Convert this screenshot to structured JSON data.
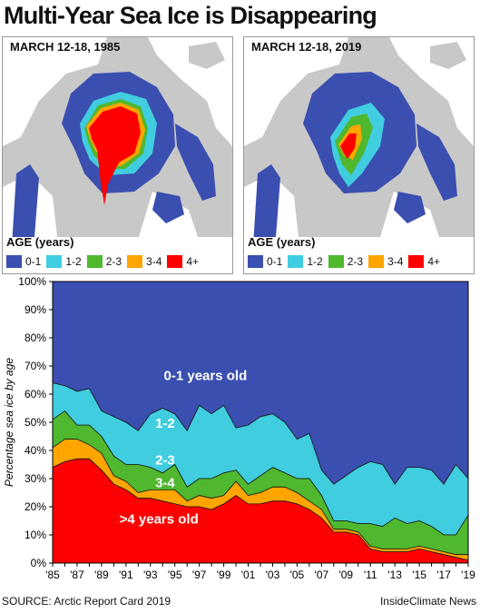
{
  "title": "Multi-Year Sea Ice is Disappearing",
  "maps": [
    {
      "date": "MARCH 12-18, 1985"
    },
    {
      "date": "MARCH 12-18, 2019"
    }
  ],
  "legend": {
    "title": "AGE (years)",
    "items": [
      {
        "label": "0-1",
        "color": "#3a4fb0"
      },
      {
        "label": "1-2",
        "color": "#40cde0"
      },
      {
        "label": "2-3",
        "color": "#4fb82e"
      },
      {
        "label": "3-4",
        "color": "#ffa500"
      },
      {
        "label": "4+",
        "color": "#ff0000"
      }
    ]
  },
  "colors": {
    "land": "#c8c8c8",
    "ocean": "#ffffff"
  },
  "chart_data": {
    "type": "area",
    "stacked": true,
    "ylabel": "Percentage sea ice by age",
    "ylim": [
      0,
      100
    ],
    "yticks": [
      "0%",
      "10%",
      "20%",
      "30%",
      "40%",
      "50%",
      "60%",
      "70%",
      "80%",
      "90%",
      "100%"
    ],
    "xtick_labels": [
      "'85",
      "'87",
      "'89",
      "'91",
      "'93",
      "'95",
      "'97",
      "'99",
      "'01",
      "'03",
      "'05",
      "'07",
      "'09",
      "'11",
      "'13",
      "'15",
      "'17",
      "'19"
    ],
    "x": [
      1985,
      1986,
      1987,
      1988,
      1989,
      1990,
      1991,
      1992,
      1993,
      1994,
      1995,
      1996,
      1997,
      1998,
      1999,
      2000,
      2001,
      2002,
      2003,
      2004,
      2005,
      2006,
      2007,
      2008,
      2009,
      2010,
      2011,
      2012,
      2013,
      2014,
      2015,
      2016,
      2017,
      2018,
      2019
    ],
    "series": [
      {
        "name": ">4 years old",
        "label": ">4 years old",
        "color": "#ff0000",
        "values": [
          34,
          36,
          37,
          37,
          33,
          28,
          26,
          23,
          23,
          22,
          21,
          20,
          20,
          19,
          21,
          24,
          21,
          21,
          22,
          22,
          21,
          19,
          16,
          11,
          11,
          10,
          5,
          4,
          4,
          4,
          5,
          4,
          3,
          2,
          1
        ]
      },
      {
        "name": "3-4",
        "label": "3-4",
        "color": "#ffa500",
        "values": [
          7,
          8,
          7,
          5,
          6,
          3,
          3,
          2,
          3,
          4,
          5,
          2,
          4,
          4,
          3,
          5,
          3,
          4,
          5,
          5,
          4,
          3,
          3,
          1,
          1,
          1,
          1,
          1,
          1,
          1,
          1,
          1,
          1,
          1,
          2
        ]
      },
      {
        "name": "2-3",
        "label": "2-3",
        "color": "#4fb82e",
        "values": [
          10,
          10,
          5,
          7,
          6,
          7,
          6,
          10,
          8,
          6,
          9,
          5,
          6,
          7,
          8,
          4,
          4,
          6,
          7,
          5,
          5,
          8,
          5,
          3,
          3,
          3,
          8,
          8,
          11,
          9,
          9,
          8,
          6,
          7,
          14
        ]
      },
      {
        "name": "1-2",
        "label": "1-2",
        "color": "#40cde0",
        "values": [
          13,
          9,
          12,
          13,
          9,
          14,
          15,
          12,
          19,
          23,
          18,
          20,
          26,
          23,
          24,
          15,
          21,
          21,
          19,
          18,
          14,
          16,
          9,
          13,
          16,
          20,
          22,
          22,
          12,
          20,
          19,
          20,
          18,
          25,
          13
        ]
      },
      {
        "name": "0-1 years old",
        "label": "0-1 years old",
        "color": "#3a4fb0",
        "values": [
          36,
          37,
          39,
          38,
          46,
          48,
          50,
          53,
          47,
          45,
          47,
          53,
          44,
          47,
          44,
          52,
          51,
          48,
          47,
          50,
          56,
          54,
          67,
          72,
          69,
          66,
          64,
          65,
          72,
          66,
          66,
          67,
          72,
          65,
          70
        ]
      }
    ]
  },
  "source": "SOURCE: Arctic Report Card 2019",
  "credit": "InsideClimate News"
}
